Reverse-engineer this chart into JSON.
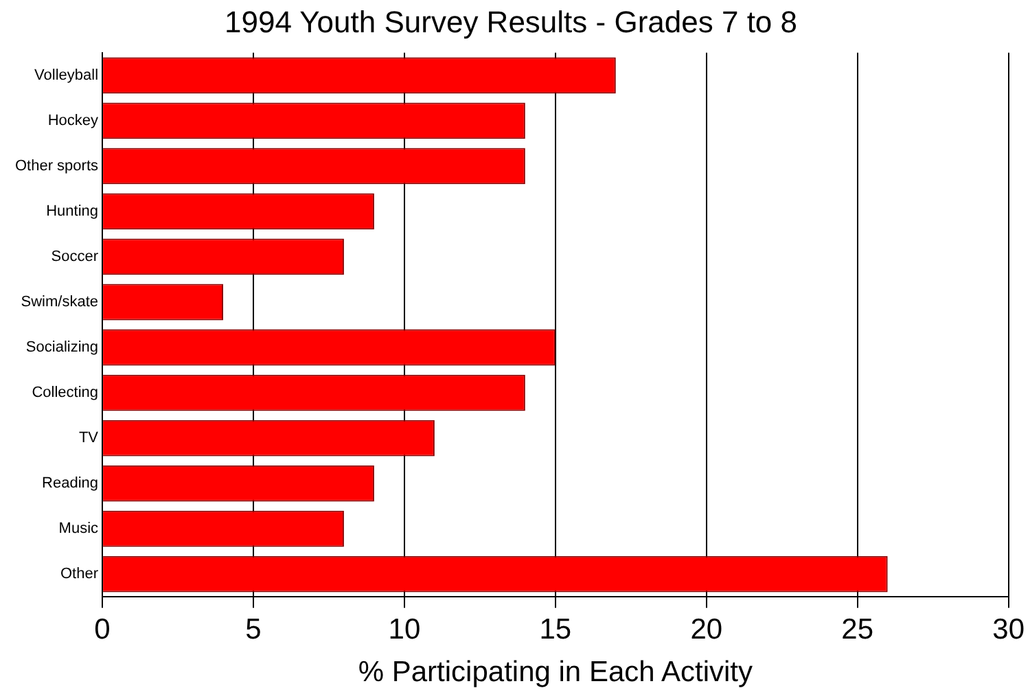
{
  "chart_data": {
    "type": "bar",
    "orientation": "horizontal",
    "title": "1994 Youth Survey Results - Grades 7 to 8",
    "xlabel": "% Participating in Each Activity",
    "categories": [
      "Volleyball",
      "Hockey",
      "Other sports",
      "Hunting",
      "Soccer",
      "Swim/skate",
      "Socializing",
      "Collecting",
      "TV",
      "Reading",
      "Music",
      "Other"
    ],
    "values": [
      17,
      14,
      14,
      9,
      8,
      4,
      15,
      14,
      11,
      9,
      8,
      26
    ],
    "color": "#ff0000",
    "xlim": [
      0,
      30
    ],
    "xticks": [
      0,
      5,
      10,
      15,
      20,
      25,
      30
    ],
    "grid": "x",
    "legend": false
  }
}
